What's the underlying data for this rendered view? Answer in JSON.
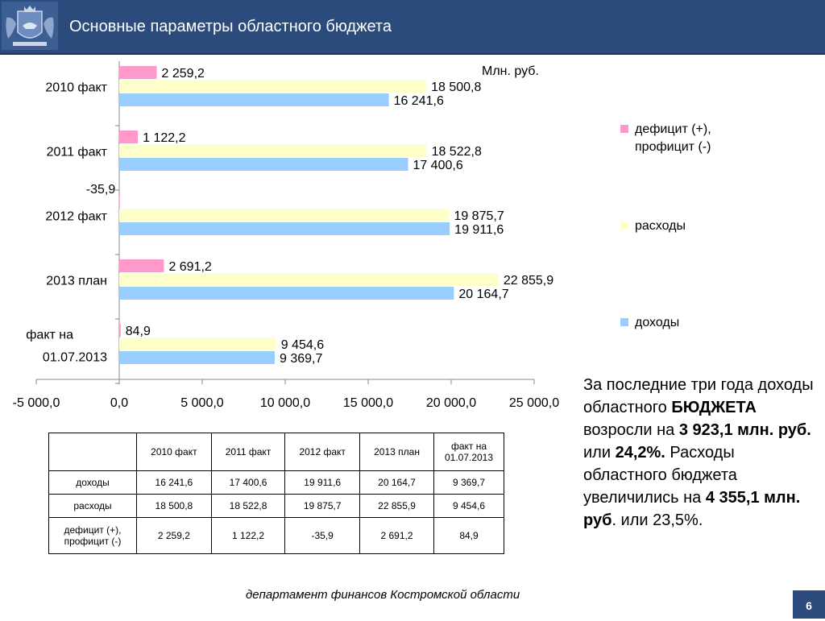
{
  "header": {
    "title": "Основные параметры областного бюджета"
  },
  "chart_data": {
    "type": "bar",
    "orientation": "horizontal",
    "unit": "Млн. руб.",
    "categories": [
      "2010 факт",
      "2011 факт",
      "2012 факт",
      "2013 план",
      "факт на 01.07.2013"
    ],
    "series": [
      {
        "name": "дефицит (+), профицит (-)",
        "color": "#ff99cc",
        "values": [
          2259.2,
          1122.2,
          -35.9,
          2691.2,
          84.9
        ],
        "labels": [
          "2 259,2",
          "1 122,2",
          "-35,9",
          "2 691,2",
          "84,9"
        ]
      },
      {
        "name": "расходы",
        "color": "#ffffcc",
        "values": [
          18500.8,
          18522.8,
          19875.7,
          22855.9,
          9454.6
        ],
        "labels": [
          "18 500,8",
          "18 522,8",
          "19 875,7",
          "22 855,9",
          "9 454,6"
        ]
      },
      {
        "name": "доходы",
        "color": "#99ccff",
        "values": [
          16241.6,
          17400.6,
          19911.6,
          20164.7,
          9369.7
        ],
        "labels": [
          "16 241,6",
          "17 400,6",
          "19 911,6",
          "20 164,7",
          "9 369,7"
        ]
      }
    ],
    "xlim": [
      -5000,
      25000
    ],
    "xticks": [
      -5000,
      0,
      5000,
      10000,
      15000,
      20000,
      25000
    ],
    "xtick_labels": [
      "-5 000,0",
      "0,0",
      "5 000,0",
      "10 000,0",
      "15 000,0",
      "20 000,0",
      "25 000,0"
    ],
    "legend_position": "right"
  },
  "table": {
    "headers": [
      "",
      "2010 факт",
      "2011 факт",
      "2012 факт",
      "2013 план",
      "факт на 01.07.2013"
    ],
    "rows": [
      [
        "доходы",
        "16 241,6",
        "17 400,6",
        "19 911,6",
        "20 164,7",
        "9 369,7"
      ],
      [
        "расходы",
        "18 500,8",
        "18 522,8",
        "19 875,7",
        "22 855,9",
        "9 454,6"
      ],
      [
        "дефицит (+), профицит (-)",
        "2 259,2",
        "1 122,2",
        "-35,9",
        "2 691,2",
        "84,9"
      ]
    ]
  },
  "side_text": {
    "p1": "За последние три года доходы  областного ",
    "p2": "БЮДЖЕТА",
    "p3": " возросли на ",
    "p4": "3 923,1 млн. руб.",
    "p5": " или ",
    "p6": "24,2%.",
    "p7": " Расходы областного бюджета увеличились на ",
    "p8": "4 355,1 млн. руб",
    "p9": ". или 23,5%."
  },
  "footer": {
    "text": "департамент финансов  Костромской области",
    "page": "6"
  }
}
